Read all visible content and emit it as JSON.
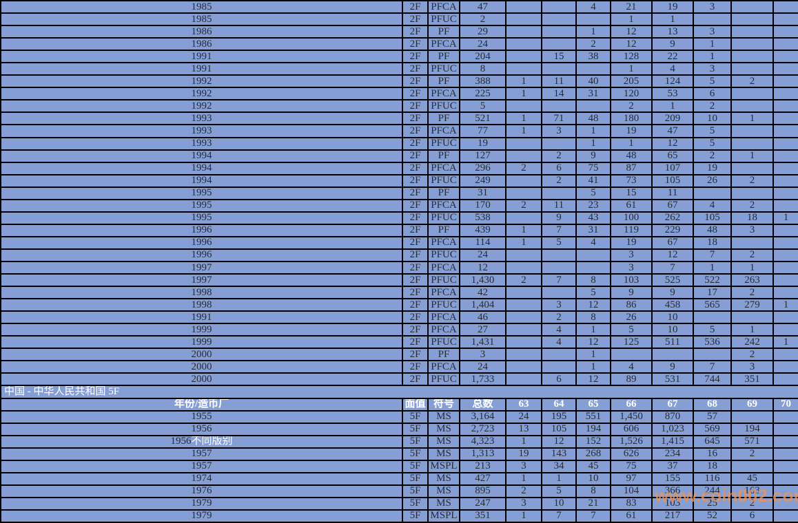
{
  "section_2f": {
    "rows": [
      {
        "year": "1985",
        "denom": "2F",
        "symbol": "PFCA",
        "total": "47",
        "grades": [
          "",
          "",
          "4",
          "21",
          "19",
          "3",
          "",
          ""
        ]
      },
      {
        "year": "1985",
        "denom": "2F",
        "symbol": "PFUC",
        "total": "2",
        "grades": [
          "",
          "",
          "",
          "1",
          "1",
          "",
          "",
          ""
        ]
      },
      {
        "year": "1986",
        "denom": "2F",
        "symbol": "PF",
        "total": "29",
        "grades": [
          "",
          "",
          "1",
          "12",
          "13",
          "3",
          "",
          ""
        ]
      },
      {
        "year": "1986",
        "denom": "2F",
        "symbol": "PFCA",
        "total": "24",
        "grades": [
          "",
          "",
          "2",
          "12",
          "9",
          "1",
          "",
          ""
        ]
      },
      {
        "year": "1991",
        "denom": "2F",
        "symbol": "PF",
        "total": "204",
        "grades": [
          "",
          "15",
          "38",
          "128",
          "22",
          "1",
          "",
          ""
        ]
      },
      {
        "year": "1991",
        "denom": "2F",
        "symbol": "PFUC",
        "total": "8",
        "grades": [
          "",
          "",
          "",
          "1",
          "4",
          "3",
          "",
          ""
        ]
      },
      {
        "year": "1992",
        "denom": "2F",
        "symbol": "PF",
        "total": "388",
        "grades": [
          "1",
          "11",
          "40",
          "205",
          "124",
          "5",
          "2",
          ""
        ]
      },
      {
        "year": "1992",
        "denom": "2F",
        "symbol": "PFCA",
        "total": "225",
        "grades": [
          "1",
          "14",
          "31",
          "120",
          "53",
          "6",
          "",
          ""
        ]
      },
      {
        "year": "1992",
        "denom": "2F",
        "symbol": "PFUC",
        "total": "5",
        "grades": [
          "",
          "",
          "",
          "2",
          "1",
          "2",
          "",
          ""
        ]
      },
      {
        "year": "1993",
        "denom": "2F",
        "symbol": "PF",
        "total": "521",
        "grades": [
          "1",
          "71",
          "48",
          "180",
          "209",
          "10",
          "1",
          ""
        ]
      },
      {
        "year": "1993",
        "denom": "2F",
        "symbol": "PFCA",
        "total": "77",
        "grades": [
          "1",
          "3",
          "1",
          "19",
          "47",
          "5",
          "",
          ""
        ]
      },
      {
        "year": "1993",
        "denom": "2F",
        "symbol": "PFUC",
        "total": "19",
        "grades": [
          "",
          "",
          "1",
          "1",
          "12",
          "5",
          "",
          ""
        ]
      },
      {
        "year": "1994",
        "denom": "2F",
        "symbol": "PF",
        "total": "127",
        "grades": [
          "",
          "2",
          "9",
          "48",
          "65",
          "2",
          "1",
          ""
        ]
      },
      {
        "year": "1994",
        "denom": "2F",
        "symbol": "PFCA",
        "total": "296",
        "grades": [
          "2",
          "6",
          "75",
          "87",
          "107",
          "19",
          "",
          ""
        ]
      },
      {
        "year": "1994",
        "denom": "2F",
        "symbol": "PFUC",
        "total": "249",
        "grades": [
          "",
          "2",
          "41",
          "73",
          "105",
          "26",
          "2",
          ""
        ]
      },
      {
        "year": "1995",
        "denom": "2F",
        "symbol": "PF",
        "total": "31",
        "grades": [
          "",
          "",
          "5",
          "15",
          "11",
          "",
          "",
          ""
        ]
      },
      {
        "year": "1995",
        "denom": "2F",
        "symbol": "PFCA",
        "total": "170",
        "grades": [
          "2",
          "11",
          "23",
          "61",
          "67",
          "4",
          "2",
          ""
        ]
      },
      {
        "year": "1995",
        "denom": "2F",
        "symbol": "PFUC",
        "total": "538",
        "grades": [
          "",
          "9",
          "43",
          "100",
          "262",
          "105",
          "18",
          "1"
        ]
      },
      {
        "year": "1996",
        "denom": "2F",
        "symbol": "PF",
        "total": "439",
        "grades": [
          "1",
          "7",
          "31",
          "119",
          "229",
          "48",
          "3",
          ""
        ]
      },
      {
        "year": "1996",
        "denom": "2F",
        "symbol": "PFCA",
        "total": "114",
        "grades": [
          "1",
          "5",
          "4",
          "19",
          "67",
          "18",
          "",
          ""
        ]
      },
      {
        "year": "1996",
        "denom": "2F",
        "symbol": "PFUC",
        "total": "24",
        "grades": [
          "",
          "",
          "",
          "3",
          "12",
          "7",
          "2",
          ""
        ]
      },
      {
        "year": "1997",
        "denom": "2F",
        "symbol": "PFCA",
        "total": "12",
        "grades": [
          "",
          "",
          "",
          "3",
          "7",
          "1",
          "1",
          ""
        ]
      },
      {
        "year": "1997",
        "denom": "2F",
        "symbol": "PFUC",
        "total": "1,430",
        "grades": [
          "2",
          "7",
          "8",
          "103",
          "525",
          "522",
          "263",
          ""
        ]
      },
      {
        "year": "1998",
        "denom": "2F",
        "symbol": "PFCA",
        "total": "42",
        "grades": [
          "",
          "",
          "5",
          "9",
          "9",
          "17",
          "2",
          ""
        ]
      },
      {
        "year": "1998",
        "denom": "2F",
        "symbol": "PFUC",
        "total": "1,404",
        "grades": [
          "",
          "3",
          "12",
          "86",
          "458",
          "565",
          "279",
          "1"
        ]
      },
      {
        "year": "1991",
        "denom": "2F",
        "symbol": "PFCA",
        "total": "46",
        "grades": [
          "",
          "2",
          "8",
          "26",
          "10",
          "",
          "",
          ""
        ]
      },
      {
        "year": "1999",
        "denom": "2F",
        "symbol": "PFCA",
        "total": "27",
        "grades": [
          "",
          "4",
          "1",
          "5",
          "10",
          "5",
          "1",
          ""
        ]
      },
      {
        "year": "1999",
        "denom": "2F",
        "symbol": "PFUC",
        "total": "1,431",
        "grades": [
          "",
          "4",
          "12",
          "125",
          "511",
          "536",
          "242",
          "1"
        ]
      },
      {
        "year": "2000",
        "denom": "2F",
        "symbol": "PF",
        "total": "3",
        "grades": [
          "",
          "",
          "1",
          "",
          "",
          "",
          "2",
          ""
        ]
      },
      {
        "year": "2000",
        "denom": "2F",
        "symbol": "PFCA",
        "total": "24",
        "grades": [
          "",
          "",
          "1",
          "4",
          "9",
          "7",
          "3",
          ""
        ]
      },
      {
        "year": "2000",
        "denom": "2F",
        "symbol": "PFUC",
        "total": "1,733",
        "grades": [
          "",
          "6",
          "12",
          "89",
          "531",
          "744",
          "351",
          ""
        ]
      }
    ]
  },
  "section_5f": {
    "title": "中国 - 中华人民共和国 5F",
    "header": {
      "year_mint": "年份/造币厂",
      "denom": "面值",
      "symbol": "符号",
      "total": "总数",
      "grades": [
        "63",
        "64",
        "65",
        "66",
        "67",
        "68",
        "69",
        "70"
      ]
    },
    "rows": [
      {
        "year": "1955",
        "denom": "5F",
        "symbol": "MS",
        "total": "3,164",
        "grades": [
          "24",
          "195",
          "551",
          "1,450",
          "870",
          "57",
          "",
          ""
        ]
      },
      {
        "year": "1956",
        "denom": "5F",
        "symbol": "MS",
        "total": "2,723",
        "grades": [
          "13",
          "105",
          "194",
          "606",
          "1,023",
          "569",
          "194",
          ""
        ]
      },
      {
        "year": "1956",
        "year_suffix": "不同版别",
        "denom": "5F",
        "symbol": "MS",
        "total": "4,323",
        "grades": [
          "1",
          "12",
          "152",
          "1,526",
          "1,415",
          "645",
          "571",
          ""
        ]
      },
      {
        "year": "1957",
        "denom": "5F",
        "symbol": "MS",
        "total": "1,313",
        "grades": [
          "19",
          "143",
          "268",
          "626",
          "234",
          "16",
          "2",
          ""
        ]
      },
      {
        "year": "1957",
        "denom": "5F",
        "symbol": "MSPL",
        "total": "213",
        "grades": [
          "3",
          "34",
          "45",
          "75",
          "37",
          "18",
          "",
          ""
        ]
      },
      {
        "year": "1974",
        "denom": "5F",
        "symbol": "MS",
        "total": "427",
        "grades": [
          "1",
          "1",
          "10",
          "97",
          "155",
          "116",
          "45",
          ""
        ]
      },
      {
        "year": "1976",
        "denom": "5F",
        "symbol": "MS",
        "total": "895",
        "grades": [
          "2",
          "5",
          "8",
          "104",
          "366",
          "244",
          "163",
          ""
        ]
      },
      {
        "year": "1979",
        "denom": "5F",
        "symbol": "MS",
        "total": "247",
        "grades": [
          "3",
          "10",
          "21",
          "83",
          "103",
          "25",
          "2",
          ""
        ]
      },
      {
        "year": "1979",
        "denom": "5F",
        "symbol": "MSPL",
        "total": "351",
        "grades": [
          "1",
          "7",
          "7",
          "61",
          "217",
          "52",
          "6",
          ""
        ]
      }
    ]
  },
  "watermark": {
    "text": "www.coin002.com"
  },
  "colors": {
    "background": "#859FD5",
    "grid": "#000000",
    "year_text": "#8D929B",
    "data_text": "#272B36",
    "header_text": "#FFFFFF",
    "watermark": "#EB945A"
  }
}
